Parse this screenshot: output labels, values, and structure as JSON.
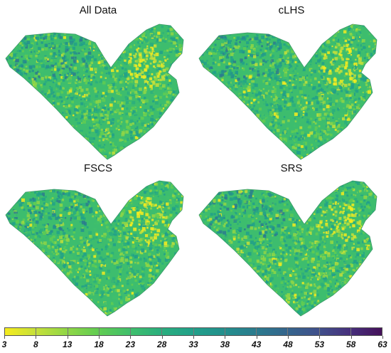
{
  "panels": [
    {
      "title": "All Data"
    },
    {
      "title": "cLHS"
    },
    {
      "title": "FSCS"
    },
    {
      "title": "SRS"
    }
  ],
  "legend": {
    "ticks": [
      "3",
      "8",
      "13",
      "18",
      "23",
      "28",
      "33",
      "38",
      "43",
      "48",
      "53",
      "58",
      "63"
    ],
    "colors": [
      "#f5ec1e",
      "#c6e03a",
      "#8fd646",
      "#60cc52",
      "#3fbf6c",
      "#2aae7e",
      "#21a08a",
      "#238f8d",
      "#2b7b8e",
      "#35658d",
      "#404f8b",
      "#472f7c",
      "#45115a"
    ]
  }
}
